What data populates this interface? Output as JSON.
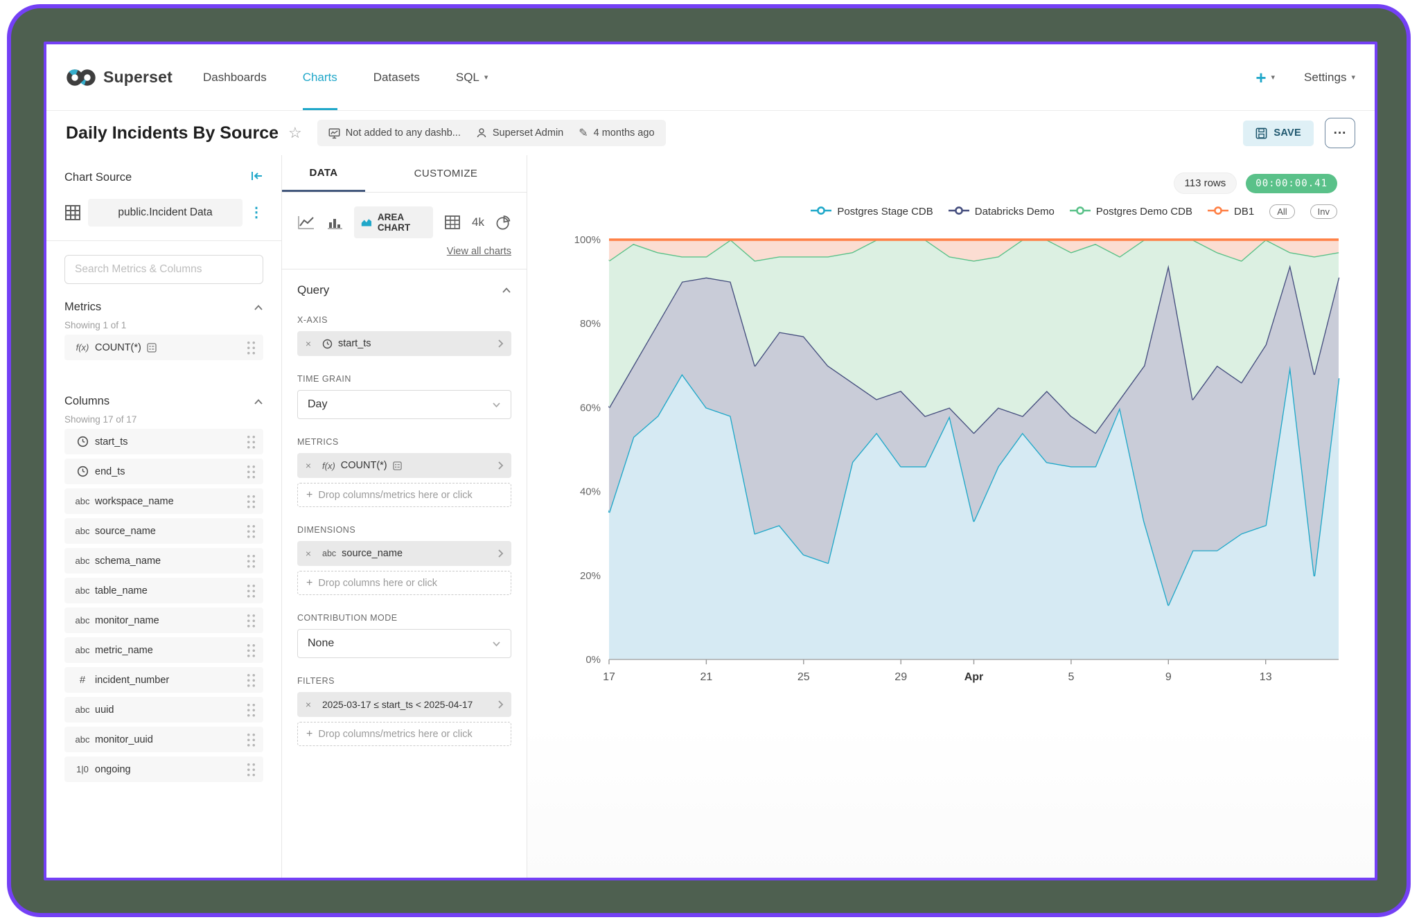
{
  "colors": {
    "accent": "#20A7C9",
    "frame_border": "#7440F5",
    "backdrop": "#4E6050",
    "tab_underline": "#44597D",
    "timer_bg": "#5AC189"
  },
  "nav": {
    "logo_text": "Superset",
    "items": [
      {
        "label": "Dashboards"
      },
      {
        "label": "Charts"
      },
      {
        "label": "Datasets"
      },
      {
        "label": "SQL"
      }
    ],
    "plus_label": "+",
    "settings_label": "Settings"
  },
  "header": {
    "title": "Daily Incidents By Source",
    "dashboard_status": "Not added to any dashb...",
    "owner": "Superset Admin",
    "last_modified": "4 months ago",
    "save_label": "SAVE",
    "more_label": "..."
  },
  "datasource_panel": {
    "title": "Chart Source",
    "dataset_name": "public.Incident Data",
    "search_placeholder": "Search Metrics & Columns",
    "metrics": {
      "heading": "Metrics",
      "showing": "Showing 1 of 1",
      "items": [
        {
          "prefix": "f(x)",
          "label": "COUNT(*)"
        }
      ]
    },
    "columns": {
      "heading": "Columns",
      "showing": "Showing 17 of 17",
      "items": [
        {
          "icon": "time",
          "label": "start_ts"
        },
        {
          "icon": "time",
          "label": "end_ts"
        },
        {
          "icon": "abc",
          "label": "workspace_name"
        },
        {
          "icon": "abc",
          "label": "source_name"
        },
        {
          "icon": "abc",
          "label": "schema_name"
        },
        {
          "icon": "abc",
          "label": "table_name"
        },
        {
          "icon": "abc",
          "label": "monitor_name"
        },
        {
          "icon": "abc",
          "label": "metric_name"
        },
        {
          "icon": "#",
          "label": "incident_number"
        },
        {
          "icon": "abc",
          "label": "uuid"
        },
        {
          "icon": "abc",
          "label": "monitor_uuid"
        },
        {
          "icon": "1|0",
          "label": "ongoing"
        }
      ]
    }
  },
  "control_panel": {
    "tabs": [
      {
        "label": "DATA"
      },
      {
        "label": "CUSTOMIZE"
      }
    ],
    "viz": {
      "selected_label": "AREA CHART",
      "big_number_label": "4k",
      "view_all": "View all charts"
    },
    "query": {
      "heading": "Query",
      "x_axis": {
        "label": "X-AXIS",
        "value": "start_ts"
      },
      "time_grain": {
        "label": "TIME GRAIN",
        "value": "Day"
      },
      "metrics": {
        "label": "METRICS",
        "prefix": "f(x)",
        "value": "COUNT(*)",
        "drop": "Drop columns/metrics here or click"
      },
      "dimensions": {
        "label": "DIMENSIONS",
        "prefix": "abc",
        "value": "source_name",
        "drop": "Drop columns here or click"
      },
      "contribution": {
        "label": "CONTRIBUTION MODE",
        "value": "None"
      },
      "filters": {
        "label": "FILTERS",
        "value": "2025-03-17 ≤ start_ts < 2025-04-17",
        "drop": "Drop columns/metrics here or click"
      }
    }
  },
  "chart_panel": {
    "rows_badge": "113 rows",
    "timer": "00:00:00.41",
    "legend_buttons": [
      {
        "label": "All"
      },
      {
        "label": "Inv"
      }
    ]
  },
  "chart_data": {
    "type": "area",
    "stacked": true,
    "unit": "%",
    "ylim": [
      0,
      100
    ],
    "yticks": [
      0,
      20,
      40,
      60,
      80,
      100
    ],
    "grid": true,
    "legend_position": "top-right",
    "x": [
      "2025-03-17",
      "2025-03-18",
      "2025-03-19",
      "2025-03-20",
      "2025-03-21",
      "2025-03-22",
      "2025-03-23",
      "2025-03-24",
      "2025-03-25",
      "2025-03-26",
      "2025-03-27",
      "2025-03-28",
      "2025-03-29",
      "2025-03-30",
      "2025-03-31",
      "2025-04-01",
      "2025-04-02",
      "2025-04-03",
      "2025-04-04",
      "2025-04-05",
      "2025-04-06",
      "2025-04-07",
      "2025-04-08",
      "2025-04-09",
      "2025-04-10",
      "2025-04-11",
      "2025-04-12",
      "2025-04-13",
      "2025-04-14",
      "2025-04-15",
      "2025-04-16"
    ],
    "xticks": [
      {
        "index": 0,
        "label": "17",
        "bold": false
      },
      {
        "index": 4,
        "label": "21",
        "bold": false
      },
      {
        "index": 8,
        "label": "25",
        "bold": false
      },
      {
        "index": 12,
        "label": "29",
        "bold": false
      },
      {
        "index": 15,
        "label": "Apr",
        "bold": true
      },
      {
        "index": 19,
        "label": "5",
        "bold": false
      },
      {
        "index": 23,
        "label": "9",
        "bold": false
      },
      {
        "index": 27,
        "label": "13",
        "bold": false
      }
    ],
    "series": [
      {
        "name": "Postgres Stage CDB",
        "color": "#1FA8C9",
        "fill": "#D6EAF3",
        "values": [
          35,
          53,
          58,
          68,
          60,
          58,
          30,
          32,
          25,
          23,
          47,
          54,
          46,
          46,
          58,
          33,
          46,
          54,
          47,
          46,
          46,
          60,
          33,
          13,
          26,
          26,
          30,
          32,
          70,
          20,
          67
        ]
      },
      {
        "name": "Databricks Demo",
        "color": "#454E7E",
        "fill": "#C9CCD8",
        "values": [
          25,
          17,
          22,
          22,
          31,
          32,
          40,
          46,
          52,
          47,
          19,
          8,
          18,
          12,
          2,
          21,
          14,
          4,
          17,
          12,
          8,
          2,
          37,
          81,
          36,
          44,
          36,
          43,
          24,
          48,
          24
        ]
      },
      {
        "name": "Postgres Demo CDB",
        "color": "#5AC189",
        "fill": "#DCF0E2",
        "values": [
          35,
          29,
          17,
          6,
          5,
          10,
          25,
          18,
          19,
          26,
          31,
          38,
          36,
          42,
          36,
          41,
          36,
          42,
          36,
          39,
          45,
          34,
          30,
          6,
          38,
          27,
          29,
          25,
          3,
          28,
          6
        ]
      },
      {
        "name": "DB1",
        "color": "#FF7F44",
        "fill": "#FBDDD2",
        "values": [
          5,
          1,
          3,
          4,
          4,
          0,
          5,
          4,
          4,
          4,
          3,
          0,
          0,
          0,
          4,
          5,
          4,
          0,
          0,
          3,
          1,
          4,
          0,
          0,
          0,
          3,
          5,
          0,
          3,
          4,
          3
        ]
      }
    ]
  }
}
